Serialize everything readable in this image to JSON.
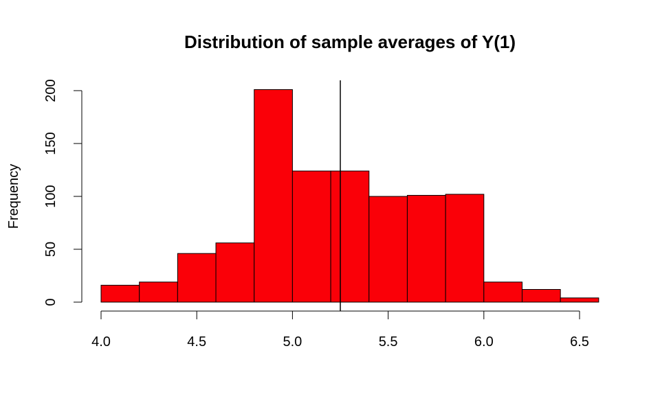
{
  "chart_data": {
    "type": "bar",
    "title": "Distribution of sample averages of Y(1)",
    "xlabel": "",
    "ylabel": "Frequency",
    "bins": [
      {
        "x0": 4.0,
        "x1": 4.2,
        "count": 16
      },
      {
        "x0": 4.2,
        "x1": 4.4,
        "count": 19
      },
      {
        "x0": 4.4,
        "x1": 4.6,
        "count": 46
      },
      {
        "x0": 4.6,
        "x1": 4.8,
        "count": 56
      },
      {
        "x0": 4.8,
        "x1": 5.0,
        "count": 201
      },
      {
        "x0": 5.0,
        "x1": 5.2,
        "count": 124
      },
      {
        "x0": 5.2,
        "x1": 5.4,
        "count": 124
      },
      {
        "x0": 5.4,
        "x1": 5.6,
        "count": 100
      },
      {
        "x0": 5.6,
        "x1": 5.8,
        "count": 101
      },
      {
        "x0": 5.8,
        "x1": 6.0,
        "count": 102
      },
      {
        "x0": 6.0,
        "x1": 6.2,
        "count": 19
      },
      {
        "x0": 6.2,
        "x1": 6.4,
        "count": 12
      },
      {
        "x0": 6.4,
        "x1": 6.6,
        "count": 4
      }
    ],
    "x_ticks": [
      4.0,
      4.5,
      5.0,
      5.5,
      6.0,
      6.5
    ],
    "x_tick_labels": [
      "4.0",
      "4.5",
      "5.0",
      "5.5",
      "6.0",
      "6.5"
    ],
    "y_ticks": [
      0,
      50,
      100,
      150,
      200
    ],
    "y_tick_labels": [
      "0",
      "50",
      "100",
      "150",
      "200"
    ],
    "xlim": [
      4.0,
      6.6
    ],
    "ylim": [
      0,
      205
    ],
    "vline": 5.25,
    "colors": {
      "bar_fill": "#fa0008",
      "bar_stroke": "#000000",
      "vline": "#000000"
    },
    "grid": false,
    "legend": "none"
  }
}
